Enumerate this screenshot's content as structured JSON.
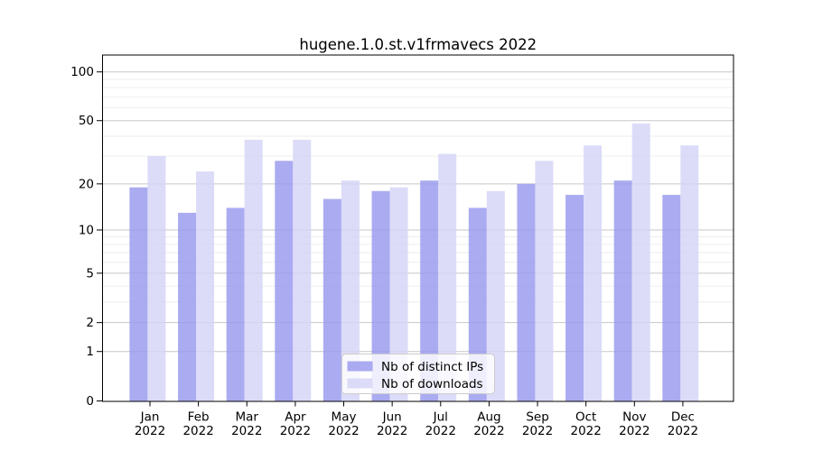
{
  "chart_data": {
    "type": "bar",
    "title": "hugene.1.0.st.v1frmavecs 2022",
    "categories": [
      "Jan",
      "Feb",
      "Mar",
      "Apr",
      "May",
      "Jun",
      "Jul",
      "Aug",
      "Sep",
      "Oct",
      "Nov",
      "Dec"
    ],
    "category_year": "2022",
    "series": [
      {
        "name": "Nb of distinct IPs",
        "color": "#9898ee",
        "values": [
          19,
          13,
          14,
          28,
          16,
          18,
          21,
          14,
          20,
          17,
          21,
          17
        ]
      },
      {
        "name": "Nb of downloads",
        "color": "#d4d4f6",
        "values": [
          30,
          24,
          38,
          38,
          21,
          19,
          31,
          18,
          28,
          35,
          48,
          35
        ]
      }
    ],
    "y_scale": "log1p",
    "y_ticks": [
      100,
      50,
      20,
      10,
      5,
      2,
      1,
      0
    ],
    "y_tick_labels": [
      "100",
      "50",
      "20",
      "10",
      "5",
      "2",
      "1",
      "0"
    ],
    "y_minor_ticks": [
      3,
      4,
      6,
      7,
      8,
      9,
      30,
      40,
      60,
      70,
      80,
      90
    ],
    "ylim": [
      0,
      125
    ],
    "grid": true,
    "legend_position": "bottom-center",
    "colors": {
      "axis": "#000000",
      "major_grid": "rgba(0,0,0,0.22)",
      "minor_grid": "rgba(0,0,0,0.07)",
      "legend_border": "#cccccc",
      "legend_background": "rgba(255,255,255,0.8)"
    }
  }
}
